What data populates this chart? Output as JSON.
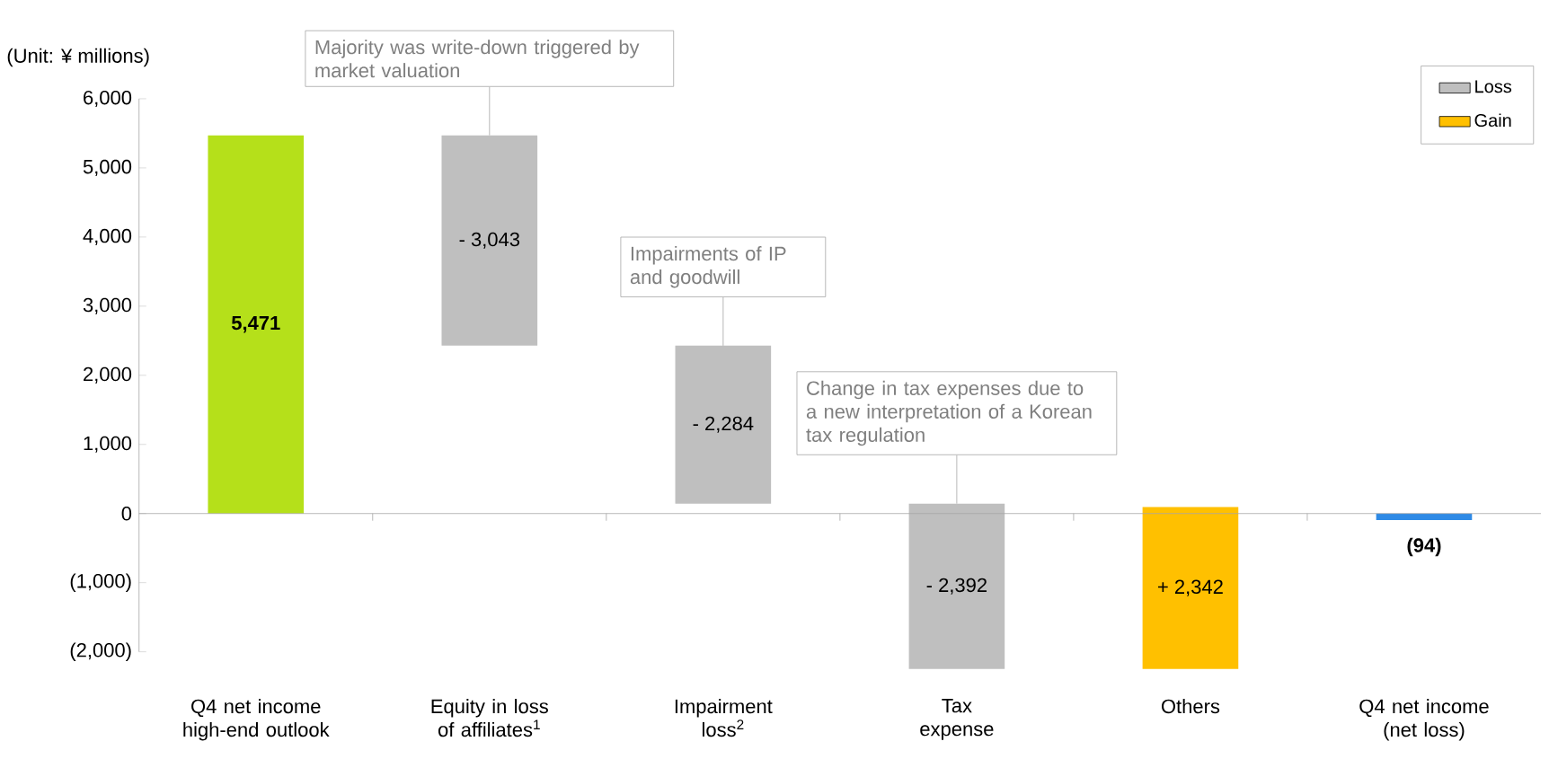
{
  "chart_data": {
    "type": "bar",
    "ylabel": "(Unit: ¥ millions)",
    "categories": [
      "Q4 net income high-end outlook",
      "Equity in loss of affiliates$^{1}$",
      "Impairment loss$^{2}$",
      "Tax expense",
      "Others",
      "Q4 net income (net loss)"
    ],
    "series": [
      {
        "color": "#b5e01a",
        "values": [
          5471,
          null,
          null,
          null,
          null,
          null
        ],
        "base": [
          0,
          null,
          null,
          null,
          null,
          null
        ],
        "value_labels": [
          "5,471",
          null,
          null,
          null,
          null,
          null
        ]
      },
      {
        "name": "Loss",
        "color": "#bfbfbf",
        "values": [
          null,
          -3043,
          -2284,
          -2392,
          null,
          null
        ],
        "base": [
          null,
          5471,
          2428,
          144,
          null,
          null
        ],
        "value_labels": [
          null,
          "- 3,043",
          "- 2,284",
          "- 2,392",
          null,
          null
        ]
      },
      {
        "name": "Gain",
        "color": "#ffc000",
        "values": [
          null,
          null,
          null,
          null,
          2342,
          null
        ],
        "base": [
          null,
          null,
          null,
          null,
          -2248,
          null
        ],
        "value_labels": [
          null,
          null,
          null,
          null,
          "+ 2,342",
          null
        ]
      },
      {
        "color": "#2e8ae6",
        "values": [
          null,
          null,
          null,
          null,
          null,
          -94
        ],
        "base": [
          null,
          null,
          null,
          null,
          null,
          0
        ],
        "value_labels": [
          null,
          null,
          null,
          null,
          null,
          "(94)"
        ]
      }
    ],
    "ylim": [
      -2000,
      6000
    ],
    "yticks": [
      {
        "value": -2000,
        "label": "(2,000)"
      },
      {
        "value": -1000,
        "label": "(1,000)"
      },
      0,
      {
        "value": 1000,
        "label": "1,000"
      },
      {
        "value": 2000,
        "label": "2,000"
      },
      {
        "value": 3000,
        "label": "3,000"
      },
      {
        "value": 4000,
        "label": "4,000"
      },
      {
        "value": 5000,
        "label": "5,000"
      },
      {
        "value": 6000,
        "label": "6,000"
      }
    ],
    "legend": "top right",
    "annotations": [
      {
        "text": "Majority was write-down triggered by market valuation",
        "x": "Equity in loss of affiliates$^{1}$",
        "y": 5471
      },
      {
        "text": "Impairments of IP and goodwill",
        "x": "Impairment loss$^{2}$",
        "y": 2428
      },
      {
        "text": "Change in tax expenses due to a new interpretation of a Korean tax regulation",
        "x": "Tax expense",
        "y": 144
      }
    ]
  }
}
